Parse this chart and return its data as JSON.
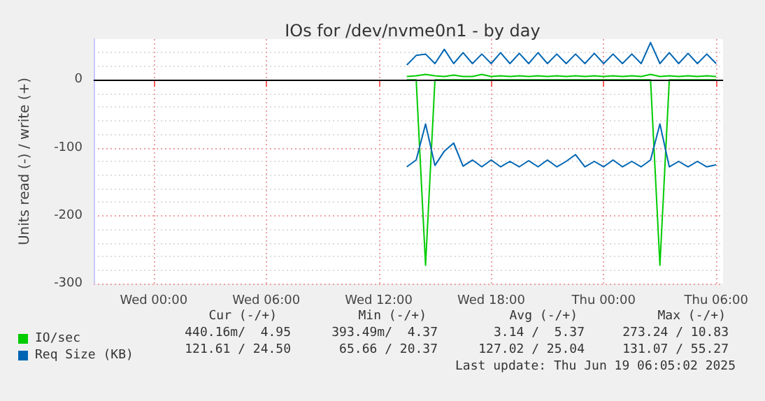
{
  "chart_data": {
    "type": "line",
    "title": "IOs for /dev/nvme0n1 - by day",
    "ylabel": "Units read (-) / write (+)",
    "x": [
      "2025-06-18T13:30",
      "2025-06-18T14:00",
      "2025-06-18T14:30",
      "2025-06-18T15:00",
      "2025-06-18T15:30",
      "2025-06-18T16:00",
      "2025-06-18T16:30",
      "2025-06-18T17:00",
      "2025-06-18T17:30",
      "2025-06-18T18:00",
      "2025-06-18T18:30",
      "2025-06-18T19:00",
      "2025-06-18T19:30",
      "2025-06-18T20:00",
      "2025-06-18T20:30",
      "2025-06-18T21:00",
      "2025-06-18T21:30",
      "2025-06-18T22:00",
      "2025-06-18T22:30",
      "2025-06-18T23:00",
      "2025-06-18T23:30",
      "2025-06-19T00:00",
      "2025-06-19T00:30",
      "2025-06-19T01:00",
      "2025-06-19T01:30",
      "2025-06-19T02:00",
      "2025-06-19T02:30",
      "2025-06-19T03:00",
      "2025-06-19T03:30",
      "2025-06-19T04:00",
      "2025-06-19T04:30",
      "2025-06-19T05:00",
      "2025-06-19T05:30",
      "2025-06-19T06:00"
    ],
    "series": [
      {
        "name": "IO/sec",
        "color": "#00cc00",
        "values": [
          5,
          6,
          8,
          6,
          5,
          7,
          5,
          5,
          8,
          5,
          6,
          5,
          6,
          5,
          6,
          5,
          6,
          5,
          6,
          5,
          6,
          5,
          6,
          5,
          6,
          5,
          8,
          5,
          6,
          5,
          6,
          5,
          6,
          5
        ]
      },
      {
        "color": "#00cc00",
        "values": [
          0,
          0,
          -273,
          0,
          0,
          0,
          0,
          0,
          0,
          0,
          0,
          0,
          0,
          0,
          0,
          0,
          0,
          0,
          0,
          0,
          0,
          0,
          0,
          0,
          0,
          0,
          0,
          -273,
          0,
          0,
          0,
          0,
          0,
          0
        ]
      },
      {
        "name": "Req Size (KB)",
        "color": "#0066b3",
        "values": [
          22,
          36,
          38,
          24,
          45,
          24,
          40,
          24,
          38,
          24,
          40,
          24,
          39,
          24,
          40,
          24,
          38,
          24,
          38,
          24,
          39,
          24,
          38,
          24,
          38,
          24,
          55,
          24,
          40,
          24,
          39,
          24,
          38,
          24
        ]
      },
      {
        "color": "#0066b3",
        "values": [
          -128,
          -118,
          -65,
          -126,
          -105,
          -93,
          -127,
          -118,
          -128,
          -118,
          -128,
          -120,
          -128,
          -119,
          -128,
          -118,
          -128,
          -120,
          -110,
          -128,
          -120,
          -128,
          -118,
          -128,
          -120,
          -128,
          -118,
          -65,
          -128,
          -120,
          -128,
          -120,
          -128,
          -125
        ]
      }
    ],
    "xlim": [
      "2025-06-17T20:48",
      "2025-06-19T06:22"
    ],
    "xticks": [
      {
        "value": "2025-06-18T00:00",
        "label": "Wed 00:00"
      },
      {
        "value": "2025-06-18T06:00",
        "label": "Wed 06:00"
      },
      {
        "value": "2025-06-18T12:00",
        "label": "Wed 12:00"
      },
      {
        "value": "2025-06-18T18:00",
        "label": "Wed 18:00"
      },
      {
        "value": "2025-06-19T00:00",
        "label": "Thu 00:00"
      },
      {
        "value": "2025-06-19T06:00",
        "label": "Thu 06:00"
      }
    ],
    "ylim": [
      -300,
      60
    ],
    "yticks": [
      -300,
      -200,
      -100,
      0
    ],
    "ref_lines": [
      {
        "axis": "y",
        "value": 0,
        "color": "#000000"
      }
    ],
    "grid": true,
    "legend": "bottom left",
    "marker": "none",
    "line_style": "solid",
    "annotations": [
      "Cur (-/+)",
      "Min (-/+)",
      "Avg (-/+)",
      "Max (-/+)",
      "440.16m/  4.95",
      "393.49m/  4.37",
      "3.14 /  5.37",
      "273.24 / 10.83",
      "121.61 / 24.50",
      "65.66 / 20.37",
      "127.02 / 25.04",
      "131.07 / 55.27",
      "Last update: Thu Jun 19 06:05:02 2025"
    ]
  }
}
